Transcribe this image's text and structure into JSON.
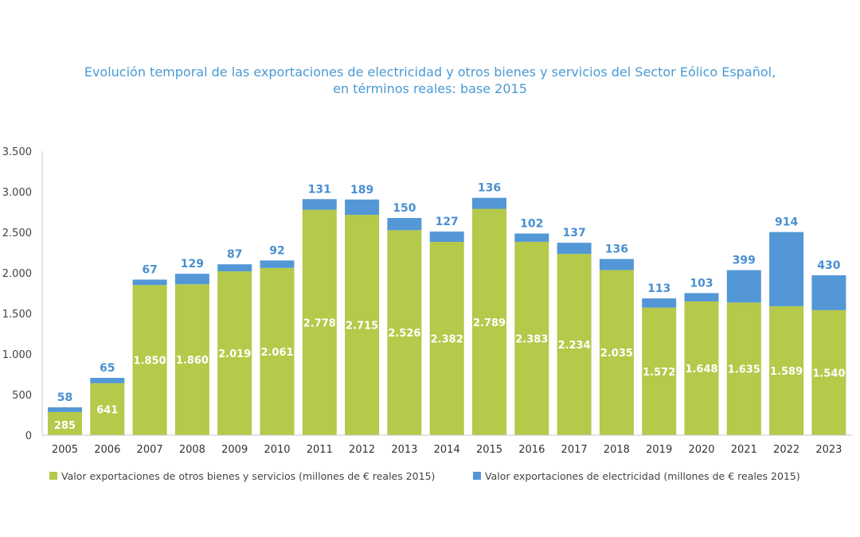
{
  "chart_data": {
    "type": "bar",
    "stacked": true,
    "title": "Evolución temporal de las exportaciones de electricidad y otros bienes y servicios del Sector Eólico Español,",
    "subtitle": "en términos reales: base 2015",
    "xlabel": "",
    "ylabel": "",
    "ylim": [
      0,
      3500
    ],
    "yticks": [
      "0",
      "500",
      "1.000",
      "1.500",
      "2.000",
      "2.500",
      "3.000",
      "3.500"
    ],
    "ytick_values": [
      0,
      500,
      1000,
      1500,
      2000,
      2500,
      3000,
      3500
    ],
    "grid": false,
    "legend_position": "bottom",
    "categories": [
      "2005",
      "2006",
      "2007",
      "2008",
      "2009",
      "2010",
      "2011",
      "2012",
      "2013",
      "2014",
      "2015",
      "2016",
      "2017",
      "2018",
      "2019",
      "2020",
      "2021",
      "2022",
      "2023"
    ],
    "series": [
      {
        "name": "Valor exportaciones de otros bienes y servicios (millones de € reales 2015)",
        "color": "#b5c94a",
        "values": [
          285,
          641,
          1850,
          1860,
          2019,
          2061,
          2778,
          2715,
          2526,
          2382,
          2789,
          2383,
          2234,
          2035,
          1572,
          1648,
          1635,
          1589,
          1540
        ],
        "labels": [
          "285",
          "641",
          "1.850",
          "1.860",
          "2.019",
          "2.061",
          "2.778",
          "2.715",
          "2.526",
          "2.382",
          "2.789",
          "2.383",
          "2.234",
          "2.035",
          "1.572",
          "1.648",
          "1.635",
          "1.589",
          "1.540"
        ]
      },
      {
        "name": "Valor exportaciones de electricidad (millones de € reales 2015)",
        "color": "#5397d6",
        "values": [
          58,
          65,
          67,
          129,
          87,
          92,
          131,
          189,
          150,
          127,
          136,
          102,
          137,
          136,
          113,
          103,
          399,
          914,
          430
        ],
        "labels": [
          "58",
          "65",
          "67",
          "129",
          "87",
          "92",
          "131",
          "189",
          "150",
          "127",
          "136",
          "102",
          "137",
          "136",
          "113",
          "103",
          "399",
          "914",
          "430"
        ]
      }
    ]
  }
}
